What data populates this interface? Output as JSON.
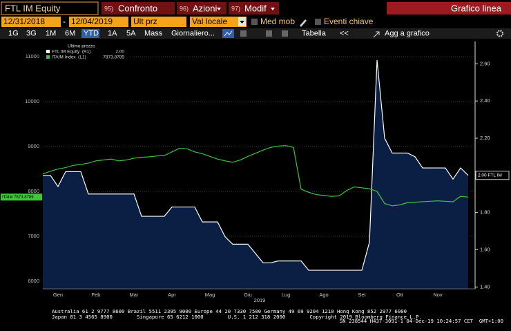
{
  "toolbar": {
    "ticker": "FTL IM Equity",
    "tabs": [
      {
        "number": "95)",
        "label": "Confronto"
      },
      {
        "number": "96)",
        "label": "Azioni"
      },
      {
        "number": "97)",
        "label": "Modif"
      }
    ],
    "view": "Grafico linea"
  },
  "controls": {
    "start_date": "12/31/2018",
    "separator": "-",
    "end_date": "12/04/2019",
    "field": "Ult prz",
    "currency": "Val locale",
    "checkboxes": [
      "Med mob",
      "Eventi chiave"
    ]
  },
  "periods": [
    "1G",
    "3G",
    "1M",
    "6M",
    "YTD",
    "1A",
    "5A",
    "Mass"
  ],
  "selected_period": "YTD",
  "frequency": "Giornaliero...",
  "table_button": "Tabella",
  "collapse_button": "<<",
  "add_button": "Agg a grafico",
  "chart_data": {
    "type": "line",
    "categories": [
      null,
      null,
      "Gen",
      null,
      null,
      null,
      null,
      "Feb",
      null,
      null,
      null,
      null,
      "Mar",
      null,
      null,
      null,
      null,
      "Apr",
      null,
      null,
      null,
      null,
      "Mag",
      null,
      null,
      null,
      null,
      "Giu",
      null,
      null,
      null,
      null,
      "Lug",
      null,
      null,
      null,
      null,
      "Ago",
      null,
      null,
      null,
      null,
      "Set",
      null,
      null,
      null,
      null,
      "Ott",
      null,
      null,
      null,
      null,
      "Nov",
      null,
      null,
      null,
      null
    ],
    "x_label": "2019",
    "series": [
      {
        "name": "FTL IM Equity  (R1)",
        "color": "#ffffff",
        "fill": "#0b1f44",
        "axis": "y2",
        "values": [
          2.0,
          2.0,
          1.94,
          2.02,
          2.02,
          2.02,
          1.9,
          1.9,
          1.9,
          1.9,
          1.9,
          1.9,
          1.9,
          1.78,
          1.78,
          1.78,
          1.78,
          1.83,
          1.83,
          1.83,
          1.83,
          1.75,
          1.75,
          1.75,
          1.67,
          1.63,
          1.63,
          1.63,
          1.58,
          1.53,
          1.53,
          1.54,
          1.54,
          1.54,
          1.54,
          1.49,
          1.49,
          1.49,
          1.49,
          1.49,
          1.49,
          1.49,
          1.49,
          1.64,
          2.62,
          2.2,
          2.12,
          2.12,
          2.12,
          2.1,
          2.04,
          2.04,
          2.04,
          2.04,
          1.98,
          2.04,
          2.0
        ],
        "last_label": "2.00",
        "edge_label": "2.00 FTL IM"
      },
      {
        "name": "ITAIM Index  (L1)",
        "color": "#3ec63e",
        "values": [
          8390,
          8450,
          8500,
          8530,
          8580,
          8600,
          8630,
          8680,
          8700,
          8720,
          8680,
          8700,
          8740,
          8760,
          8770,
          8790,
          8800,
          8880,
          8960,
          8950,
          8880,
          8840,
          8780,
          8720,
          8680,
          8650,
          8700,
          8780,
          8850,
          8920,
          8980,
          9010,
          9020,
          8980,
          8050,
          7980,
          7930,
          7910,
          7890,
          7900,
          8020,
          8100,
          8080,
          8060,
          8000,
          7730,
          7680,
          7700,
          7750,
          7760,
          7770,
          7780,
          7790,
          7780,
          7770,
          7890,
          7873.8789
        ],
        "last_label": "7873.8789",
        "edge_label": "ITAIM 7873.8789"
      }
    ],
    "legend_title": "Ultimo prezzo",
    "ylim": [
      5830,
      11340
    ],
    "yticks": [
      6000,
      7000,
      8000,
      9000,
      10000,
      11000
    ],
    "y2lim": [
      1.39,
      2.72
    ],
    "y2ticks": [
      {
        "value": 1.4,
        "label": "1.40"
      },
      {
        "value": 1.6,
        "label": "1.60"
      },
      {
        "value": 1.8,
        "label": "1.80"
      },
      {
        "value": 2.0,
        "label": "2.00"
      },
      {
        "value": 2.2,
        "label": "2.20"
      },
      {
        "value": 2.4,
        "label": "2.40"
      },
      {
        "value": 2.6,
        "label": "2.60"
      }
    ],
    "grid": true
  },
  "footer": [
    "Australia 61 2 9777 8600 Brazil 5511 2395 9000 Europe 44 20 7330 7500 Germany 49 69 9204 1210 Hong Kong 852 2977 6000",
    "Japan 81 3 4565 8900        Singapore 65 6212 1000        U.S. 1 212 318 2000        Copyright 2019 Bloomberg Finance L.P.",
    "SN 238544 H437-3091-1 04-Dec-19 10:24:57 CET  GMT+1:00"
  ]
}
